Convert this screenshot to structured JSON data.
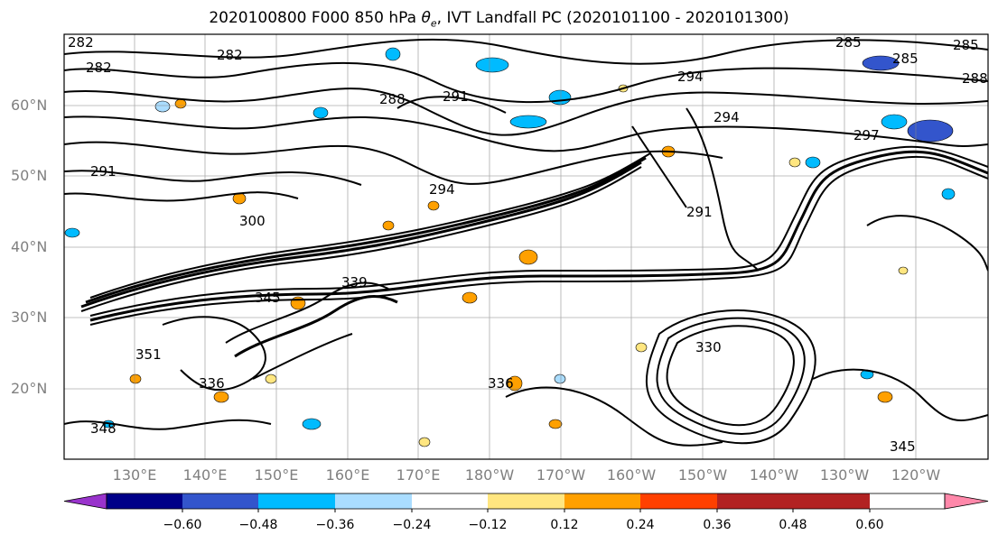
{
  "title_prefix": "2020100800 F000 850 hPa ",
  "title_theta": "θ",
  "title_sub": "e",
  "title_suffix": ", IVT Landfall PC (2020101100 - 2020101300)",
  "lat_labels": [
    "60°N",
    "50°N",
    "40°N",
    "30°N",
    "20°N"
  ],
  "lon_labels": [
    "130°E",
    "140°E",
    "150°E",
    "160°E",
    "170°E",
    "180°W",
    "170°W",
    "160°W",
    "150°W",
    "140°W",
    "130°W",
    "120°W"
  ],
  "contour_labels": [
    "282",
    "285",
    "288",
    "291",
    "294",
    "297",
    "300",
    "330",
    "336",
    "339",
    "345",
    "348",
    "351"
  ],
  "colorbar": {
    "colors": [
      "#9933cc",
      "#000088",
      "#3355cc",
      "#00bbff",
      "#aaddff",
      "#ffffff",
      "#ffe680",
      "#ffa000",
      "#ff4000",
      "#b22222",
      "#ff88aa"
    ],
    "tick_labels": [
      "−0.60",
      "−0.48",
      "−0.36",
      "−0.24",
      "−0.12",
      "0.12",
      "0.24",
      "0.36",
      "0.48",
      "0.60"
    ]
  }
}
